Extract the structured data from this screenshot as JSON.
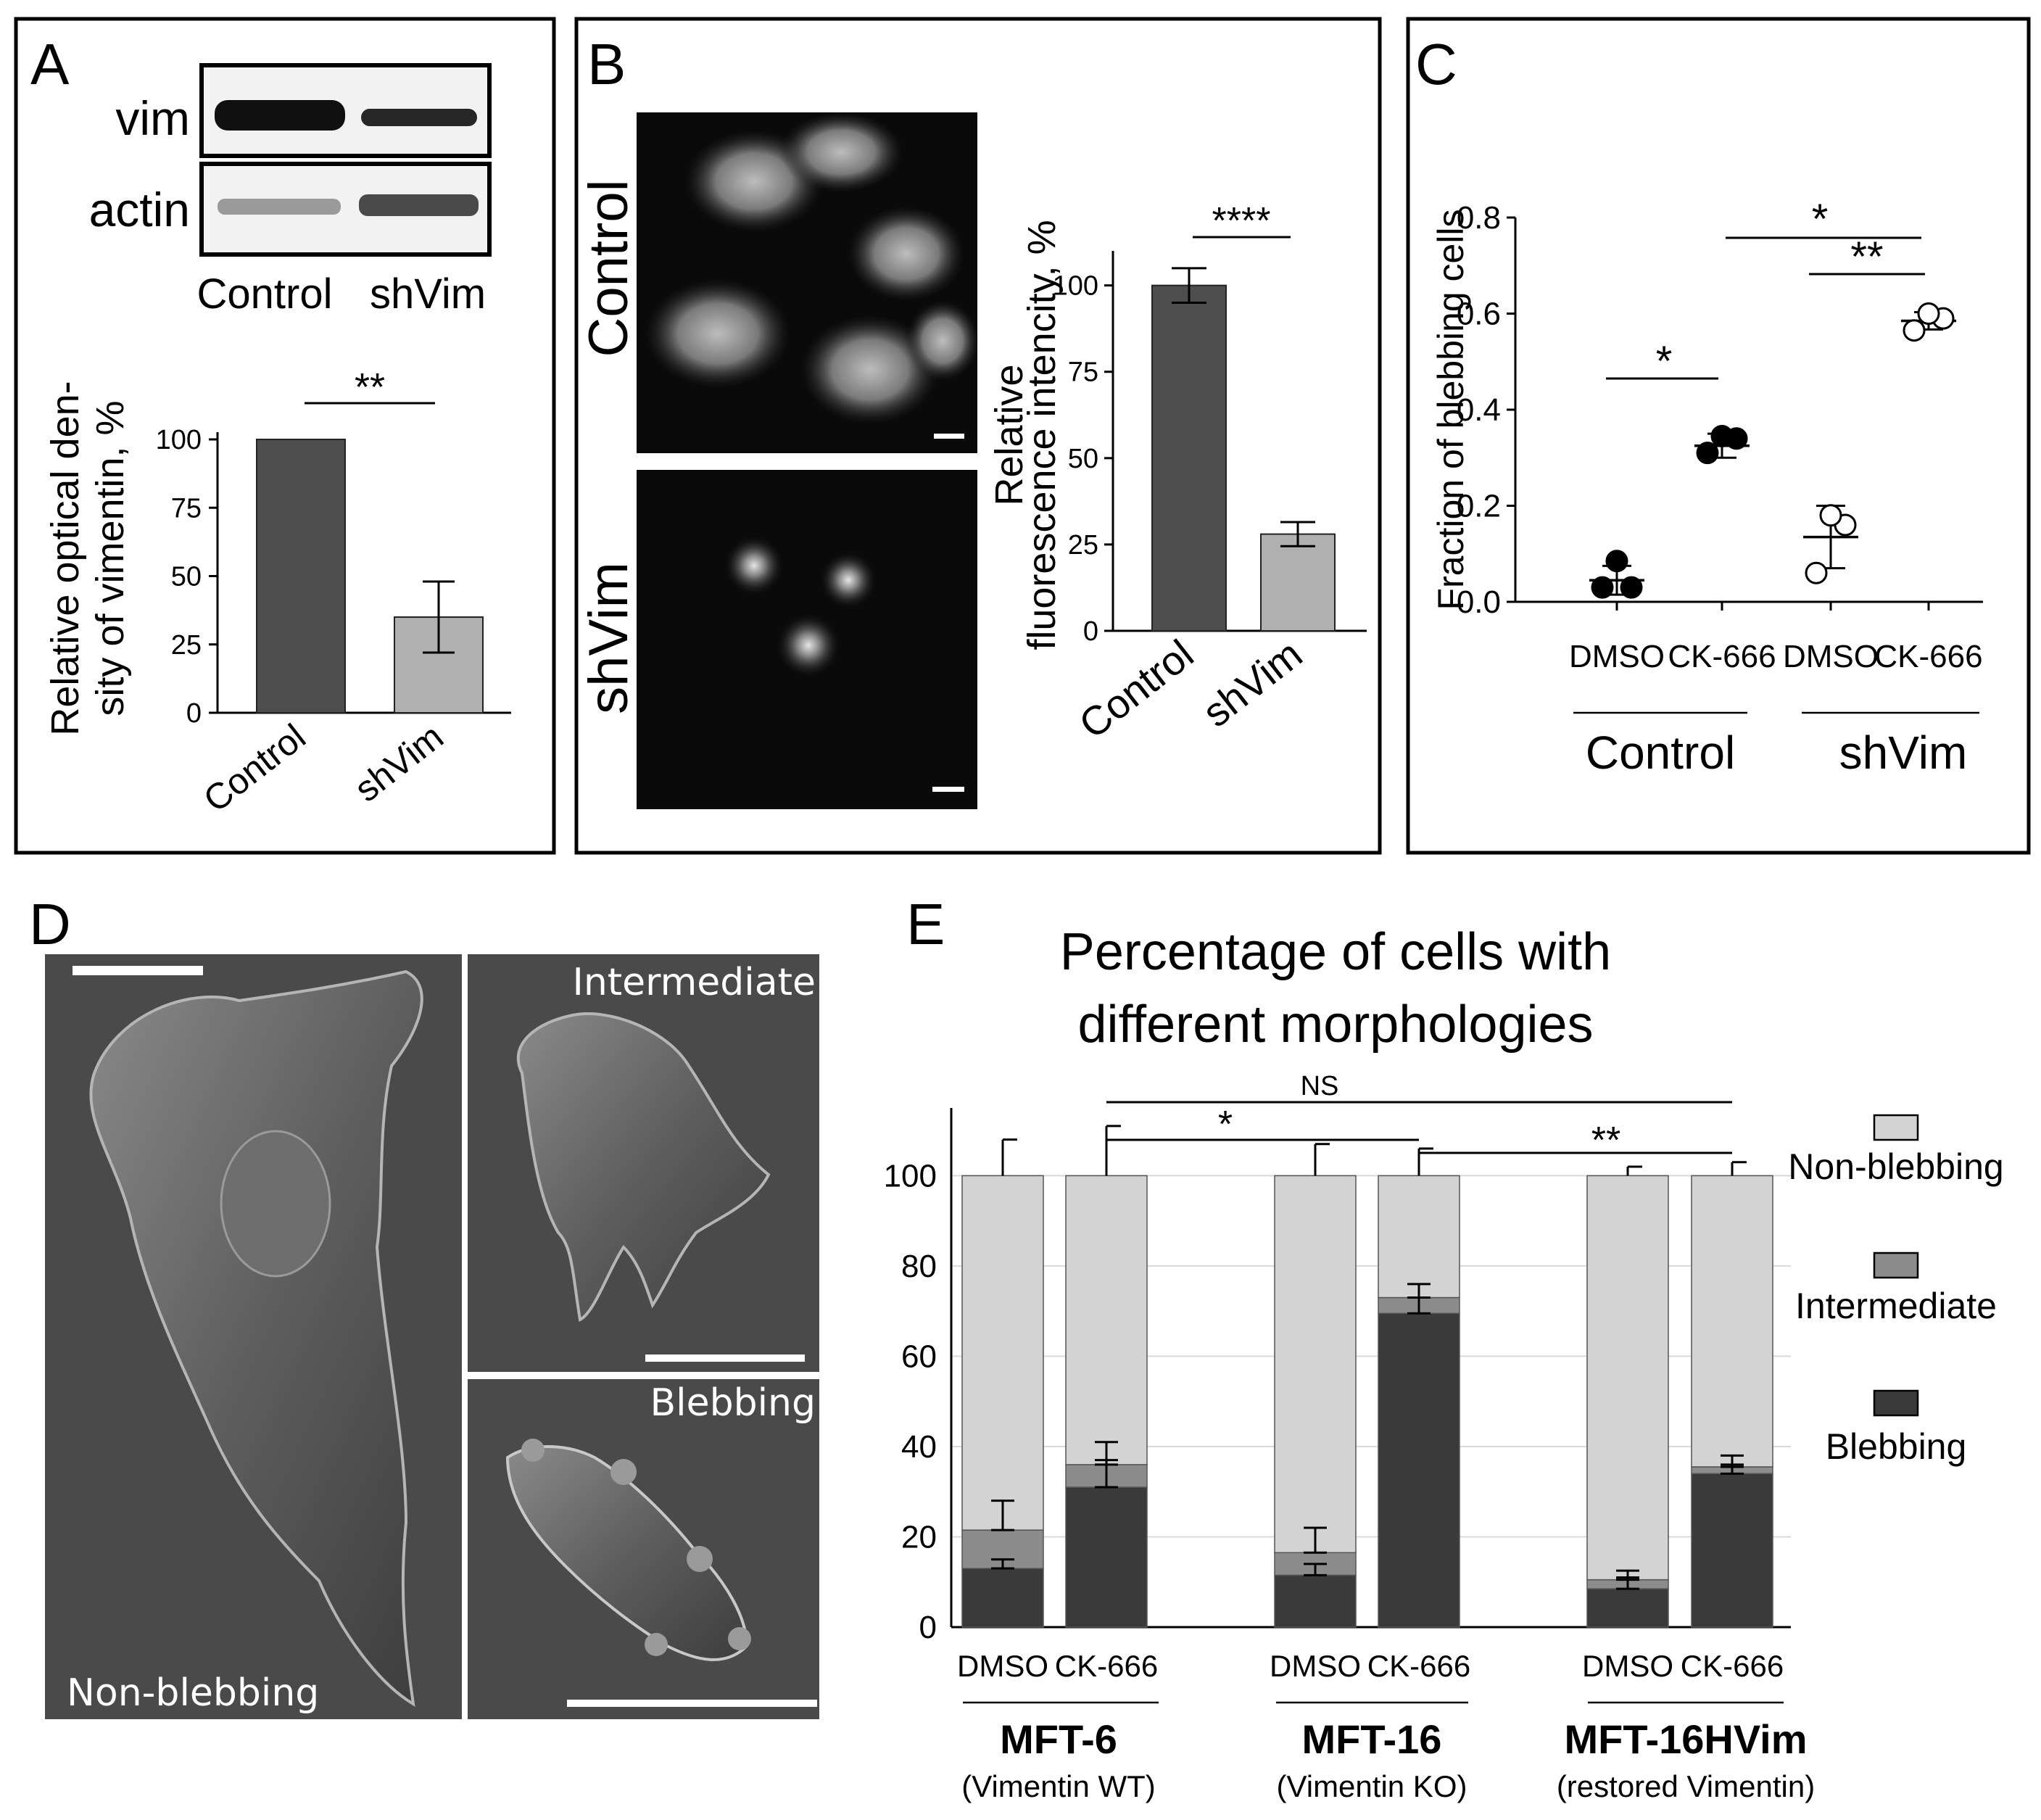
{
  "panels": {
    "a": "A",
    "b": "B",
    "c": "C",
    "d": "D",
    "e": "E"
  },
  "colors": {
    "control": "#4d4d4d",
    "shvim": "#b0b0b0",
    "blebbing": "#3a3a3a",
    "intermediate": "#8c8c8c",
    "non_blebbing": "#d3d3d3"
  },
  "chart_data": [
    {
      "panel": "A",
      "type": "bar",
      "blot_labels": [
        "vim",
        "actin"
      ],
      "blot_columns": [
        "Control",
        "shVim"
      ],
      "categories": [
        "Control",
        "shVim"
      ],
      "values": [
        100,
        35
      ],
      "errors": [
        0,
        13
      ],
      "ylabel_lines": [
        "Relative optical den-",
        "sity of vimentin, %"
      ],
      "yticks": [
        0,
        25,
        50,
        75,
        100
      ],
      "ylim": [
        0,
        100
      ],
      "significance": "**",
      "colors": [
        "#4d4d4d",
        "#b0b0b0"
      ]
    },
    {
      "panel": "B",
      "type": "bar",
      "image_labels": [
        "Control",
        "shVim"
      ],
      "categories": [
        "Control",
        "shVim"
      ],
      "values": [
        100,
        28
      ],
      "errors": [
        5,
        3.5
      ],
      "ylabel_lines": [
        "Relative",
        "fluorescence intencity, %"
      ],
      "yticks": [
        0,
        25,
        50,
        75,
        100
      ],
      "ylim": [
        0,
        110
      ],
      "significance": "****",
      "colors": [
        "#4d4d4d",
        "#b0b0b0"
      ]
    },
    {
      "panel": "C",
      "type": "scatter",
      "ylabel": "Fraction of blebbing cells",
      "yticks": [
        "0.0",
        "0.2",
        "0.4",
        "0.6",
        "0.8"
      ],
      "ylim": [
        0,
        0.8
      ],
      "categories": [
        "DMSO",
        "CK-666",
        "DMSO",
        "CK-666"
      ],
      "groups": [
        "Control",
        "shVim"
      ],
      "series": [
        {
          "name": "Control",
          "filled": true,
          "points": [
            {
              "x": "DMSO",
              "y": [
                0.03,
                0.03,
                0.085
              ],
              "mean": 0.045,
              "sd": 0.03
            },
            {
              "x": "CK-666",
              "y": [
                0.31,
                0.34,
                0.345
              ],
              "mean": 0.325,
              "sd": 0.025
            }
          ]
        },
        {
          "name": "shVim",
          "filled": false,
          "points": [
            {
              "x": "DMSO",
              "y": [
                0.06,
                0.16,
                0.18
              ],
              "mean": 0.135,
              "sd": 0.065
            },
            {
              "x": "CK-666",
              "y": [
                0.565,
                0.59,
                0.6
              ],
              "mean": 0.585,
              "sd": 0.018
            }
          ]
        }
      ],
      "significance": [
        "*",
        "**",
        "*"
      ]
    },
    {
      "panel": "D",
      "type": "image",
      "labels": [
        "Intermediate",
        "Blebbing",
        "Non-blebbing"
      ]
    },
    {
      "panel": "E",
      "type": "bar",
      "stacked": true,
      "title_lines": [
        "Percentage of cells with",
        "different  morphologies"
      ],
      "categories": [
        "DMSO",
        "CK-666",
        "DMSO",
        "CK-666",
        "DMSO",
        "CK-666"
      ],
      "groups": [
        {
          "name": "MFT-6",
          "sub": "(Vimentin WT)"
        },
        {
          "name": "MFT-16",
          "sub": "(Vimentin KO)"
        },
        {
          "name": "MFT-16HVim",
          "sub": "(restored Vimentin)"
        }
      ],
      "yticks": [
        0,
        20,
        40,
        60,
        80,
        100
      ],
      "ylim": [
        0,
        115
      ],
      "series": [
        {
          "name": "Blebbing",
          "values": [
            13,
            31,
            11.5,
            69.5,
            8.5,
            34
          ]
        },
        {
          "name": "Intermediate",
          "values": [
            8.5,
            5,
            5,
            3.5,
            2,
            1.5
          ]
        },
        {
          "name": "Non-blebbing",
          "values": [
            78.5,
            64,
            83.5,
            27,
            89.5,
            64.5
          ]
        }
      ],
      "error_tops": {
        "blebbing": [
          15,
          37,
          14,
          73,
          11,
          36
        ],
        "intermediate": [
          28,
          41,
          22,
          76,
          12.5,
          38
        ],
        "total": [
          108,
          111,
          107,
          106,
          102,
          103
        ]
      },
      "significance": [
        "*",
        "**",
        "NS"
      ],
      "legend": [
        "Non-blebbing",
        "Intermediate",
        "Blebbing"
      ]
    }
  ]
}
